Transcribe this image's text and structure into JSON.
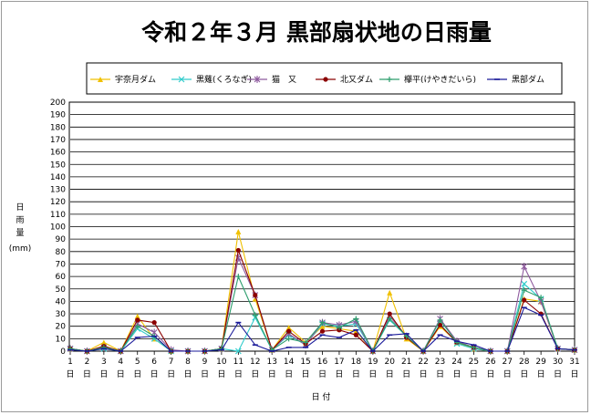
{
  "chart_data": {
    "type": "line",
    "title": "令和２年３月 黒部扇状地の日雨量",
    "xlabel": "日 付",
    "ylabel_chars": [
      "日",
      "雨",
      "量"
    ],
    "ylabel_unit": "(mm)",
    "ylim": [
      0,
      200
    ],
    "ytick_step": 10,
    "grid": true,
    "legend_position": "top",
    "x": [
      1,
      2,
      3,
      4,
      5,
      6,
      7,
      8,
      9,
      10,
      11,
      12,
      13,
      14,
      15,
      16,
      17,
      18,
      19,
      20,
      21,
      22,
      23,
      24,
      25,
      26,
      27,
      28,
      29,
      30,
      31
    ],
    "x_suffix": "日",
    "series": [
      {
        "name": "宇奈月ダム",
        "color": "#f0c000",
        "marker": "triangle",
        "values": [
          2,
          0,
          7,
          0,
          28,
          10,
          0,
          0,
          0,
          2,
          96,
          42,
          1,
          19,
          7,
          20,
          18,
          16,
          0,
          47,
          10,
          0,
          20,
          7,
          2,
          0,
          0,
          42,
          40,
          2,
          1
        ]
      },
      {
        "name": "黒薙(くろなぎ)",
        "color": "#33cccc",
        "marker": "x",
        "values": [
          2,
          0,
          2,
          0,
          18,
          10,
          0,
          0,
          0,
          2,
          0,
          27,
          1,
          13,
          5,
          22,
          20,
          22,
          0,
          25,
          12,
          0,
          22,
          6,
          2,
          0,
          0,
          54,
          42,
          2,
          1
        ]
      },
      {
        "name": "猫　又",
        "color": "#8e5a9e",
        "marker": "star",
        "values": [
          2,
          0,
          3,
          0,
          22,
          15,
          1,
          0,
          0,
          2,
          75,
          45,
          1,
          14,
          5,
          23,
          21,
          24,
          0,
          28,
          12,
          0,
          26,
          8,
          3,
          0,
          0,
          68,
          40,
          2,
          1
        ]
      },
      {
        "name": "北又ダム",
        "color": "#8b0000",
        "marker": "dot",
        "values": [
          2,
          0,
          4,
          0,
          25,
          23,
          0,
          0,
          0,
          2,
          81,
          45,
          1,
          16,
          6,
          16,
          17,
          13,
          0,
          30,
          11,
          0,
          21,
          7,
          3,
          0,
          0,
          41,
          30,
          2,
          1
        ]
      },
      {
        "name": "欅平(けやきだいら)",
        "color": "#2e9e6e",
        "marker": "plus",
        "values": [
          2,
          0,
          3,
          0,
          20,
          12,
          0,
          0,
          0,
          2,
          60,
          29,
          1,
          10,
          7,
          23,
          19,
          26,
          0,
          26,
          12,
          0,
          25,
          7,
          3,
          0,
          0,
          49,
          43,
          2,
          1
        ]
      },
      {
        "name": "黒部ダム",
        "color": "#1a1a99",
        "marker": "dash",
        "values": [
          1,
          0,
          2,
          0,
          11,
          12,
          0,
          0,
          0,
          1,
          23,
          5,
          0,
          3,
          3,
          13,
          11,
          17,
          0,
          13,
          14,
          0,
          13,
          8,
          5,
          0,
          0,
          35,
          29,
          2,
          1
        ]
      }
    ]
  }
}
